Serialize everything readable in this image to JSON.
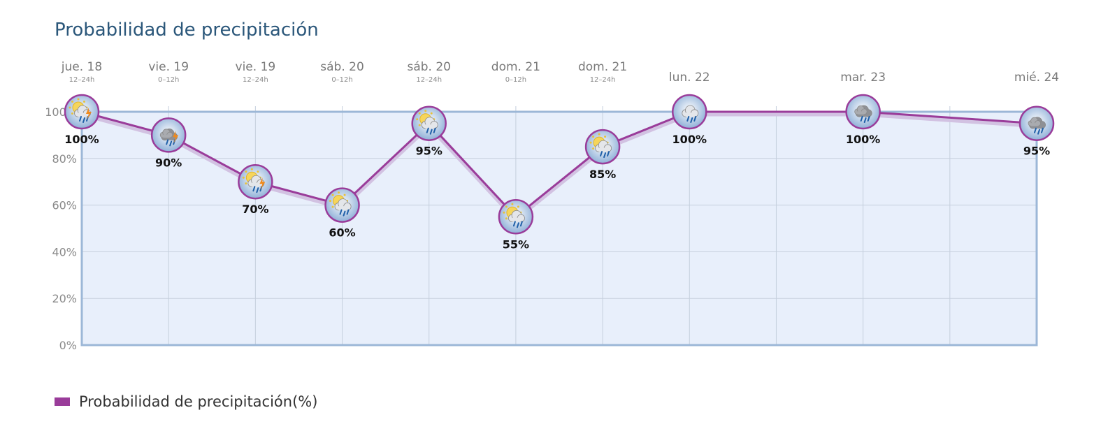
{
  "chart_data": {
    "type": "line",
    "title": "Probabilidad de precipitación",
    "categories": [
      {
        "day": "jue. 18",
        "period": "12–24h",
        "icon": "sun-cloud-rain-thunder-icon"
      },
      {
        "day": "vie. 19",
        "period": "0–12h",
        "icon": "dark-cloud-rain-thunder-icon"
      },
      {
        "day": "vie. 19",
        "period": "12–24h",
        "icon": "sun-cloud-rain-thunder-icon"
      },
      {
        "day": "sáb. 20",
        "period": "0–12h",
        "icon": "sun-cloud-rain-icon"
      },
      {
        "day": "sáb. 20",
        "period": "12–24h",
        "icon": "sun-cloud-rain-icon"
      },
      {
        "day": "dom. 21",
        "period": "0–12h",
        "icon": "sun-cloud-rain-icon"
      },
      {
        "day": "dom. 21",
        "period": "12–24h",
        "icon": "sun-cloud-rain-icon"
      },
      {
        "day": "lun. 22",
        "period": "",
        "icon": "cloud-rain-icon"
      },
      {
        "day": "mar. 23",
        "period": "",
        "icon": "dark-cloud-rain-icon"
      },
      {
        "day": "mié. 24",
        "period": "",
        "icon": "dark-cloud-rain-icon"
      }
    ],
    "x_slots": [
      0,
      1,
      2,
      3,
      4,
      5,
      6,
      7,
      9,
      11
    ],
    "x_slot_count": 12,
    "series": [
      {
        "name": "Probabilidad de precipitación(%)",
        "color": "#9a3c9a",
        "values": [
          100,
          90,
          70,
          60,
          95,
          55,
          85,
          100,
          100,
          95
        ],
        "labels": [
          "100%",
          "90%",
          "70%",
          "60%",
          "95%",
          "55%",
          "85%",
          "100%",
          "100%",
          "95%"
        ]
      }
    ],
    "y_ticks": [
      "0%",
      "20%",
      "40%",
      "60%",
      "80%",
      "100%"
    ],
    "ylim": [
      0,
      100
    ],
    "grid": true,
    "legend": "bottom-left",
    "plot_background": "#e8effb",
    "plot_border": "#9cb7d7",
    "grid_color": "#c5cfdd"
  },
  "legend": {
    "label": "Probabilidad de precipitación(%)"
  }
}
